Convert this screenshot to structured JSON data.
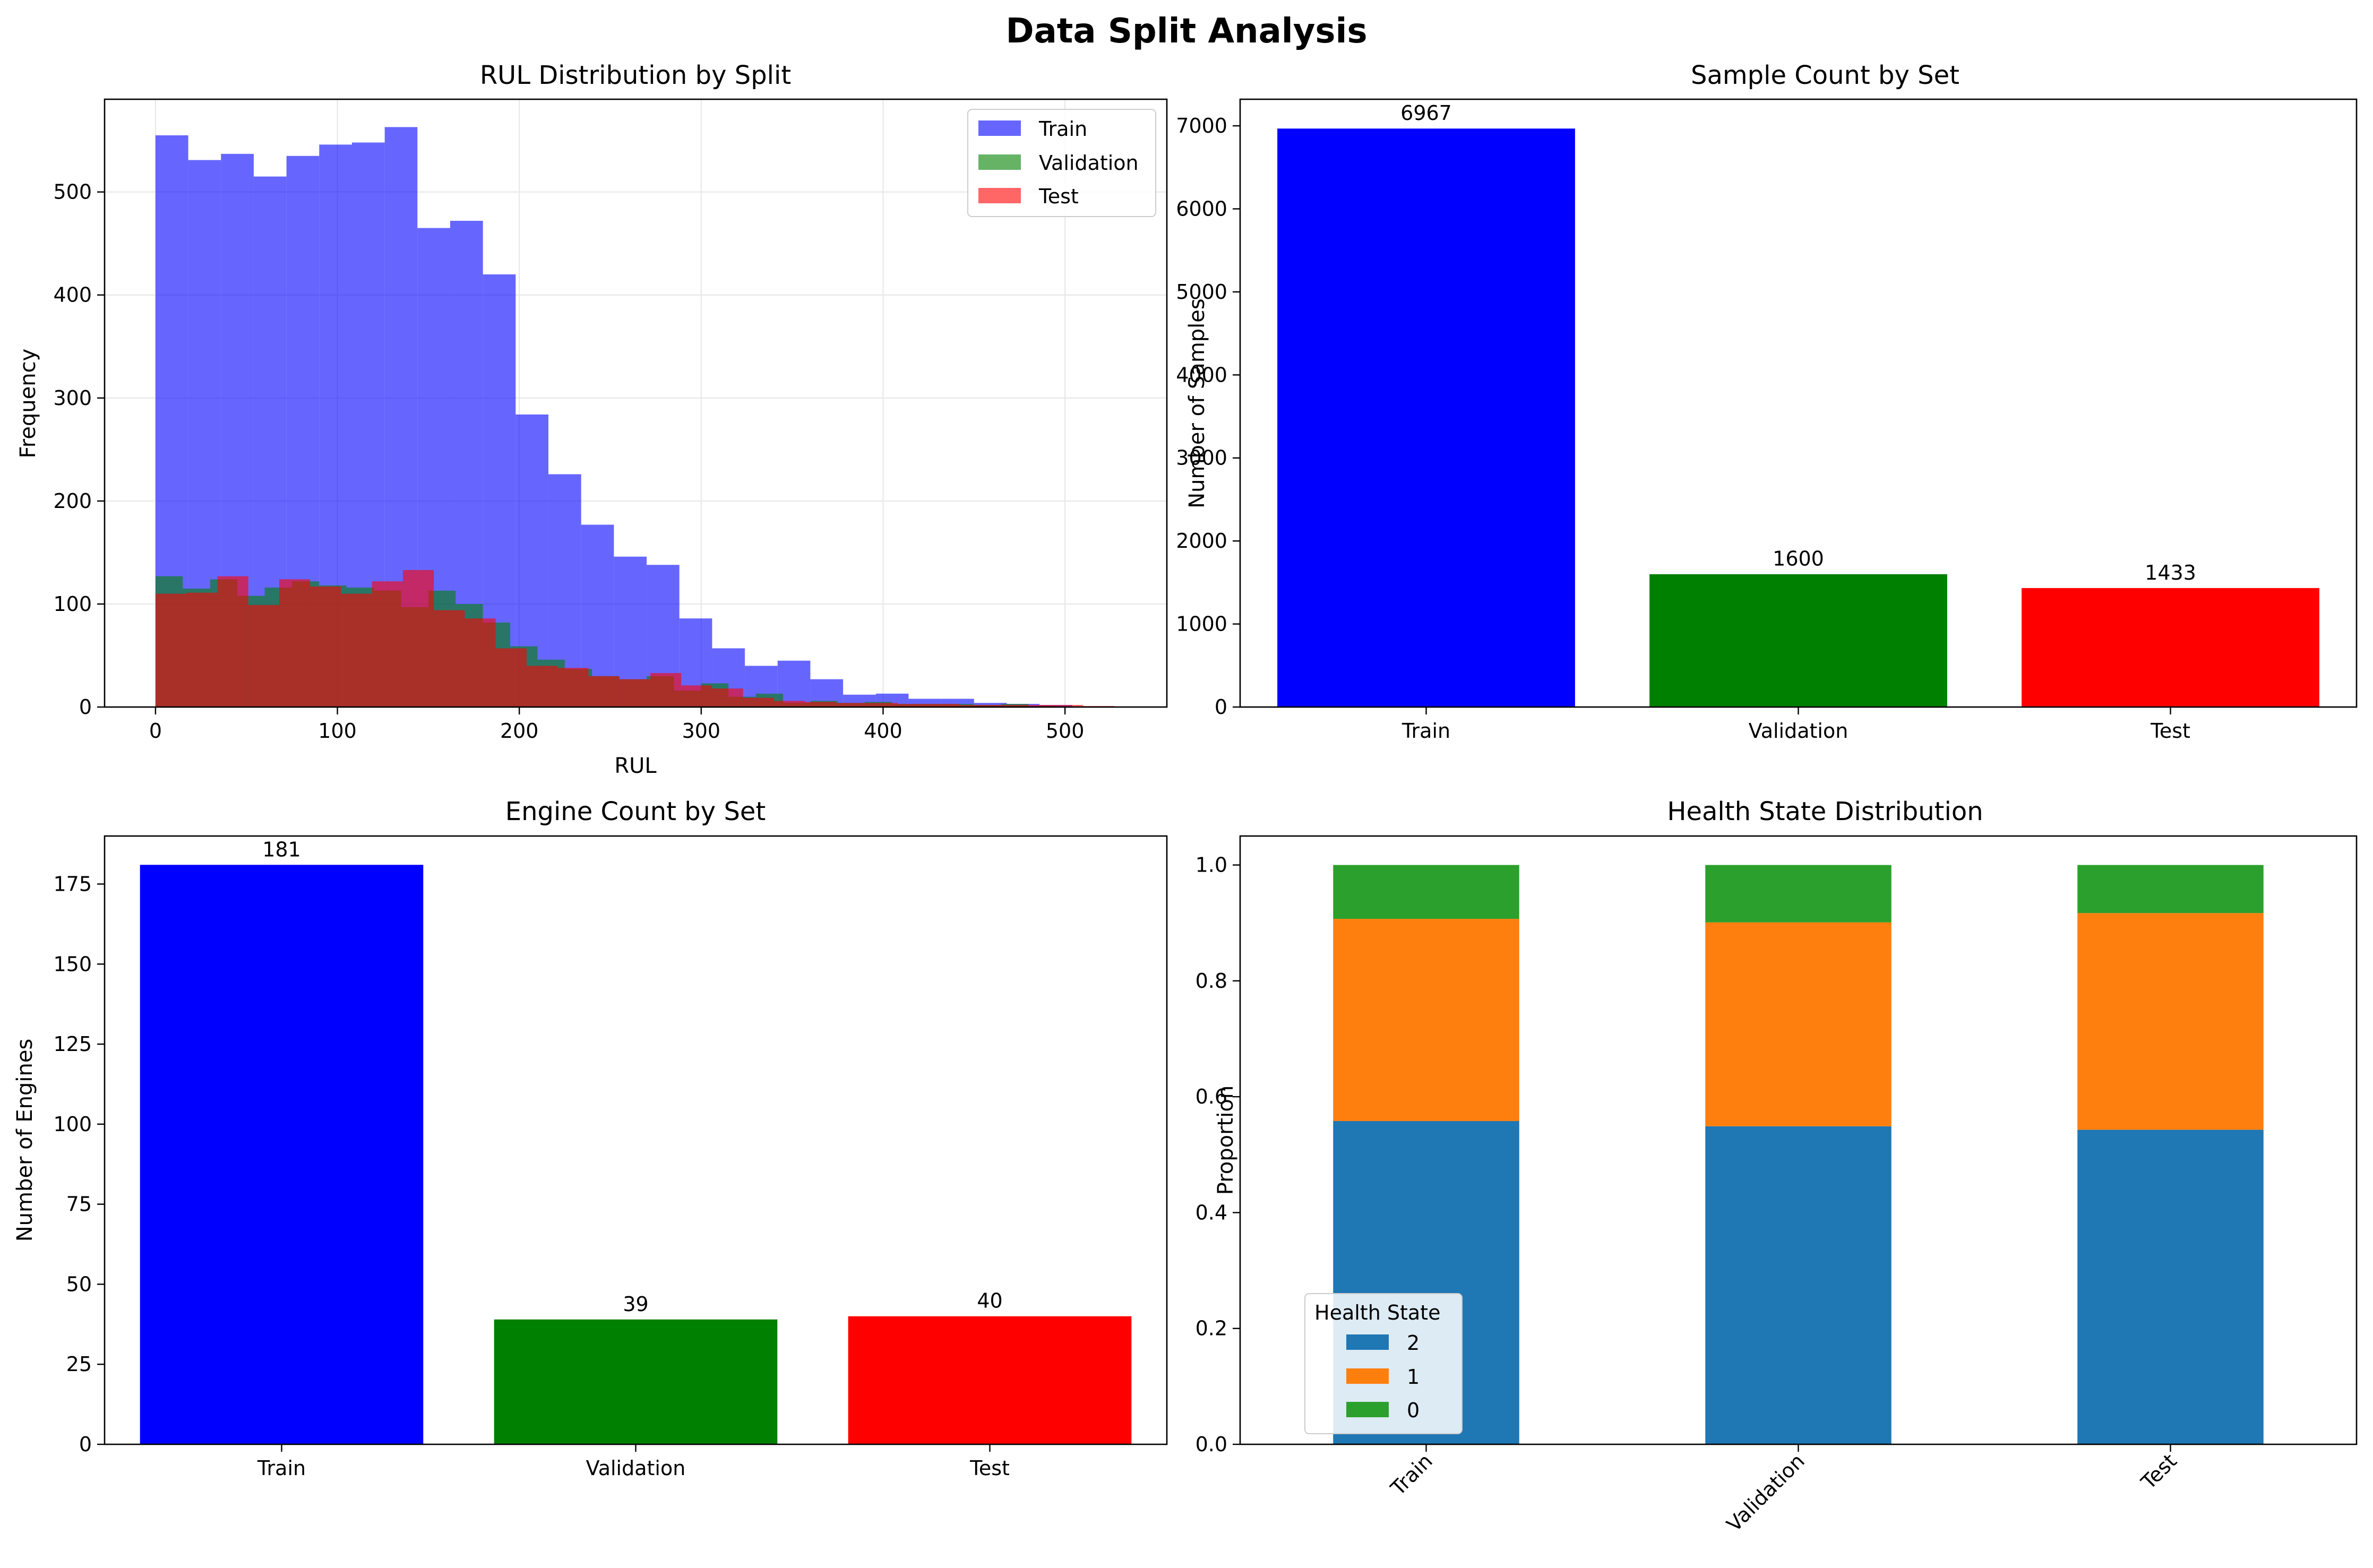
{
  "figure": {
    "title": "Data Split Analysis"
  },
  "chart_data": [
    {
      "type": "bar",
      "subtype": "histogram",
      "title": "RUL Distribution by Split",
      "xlabel": "RUL",
      "ylabel": "Frequency",
      "xlim": [
        -28,
        556
      ],
      "ylim": [
        0,
        590
      ],
      "xticks": [
        0,
        100,
        200,
        300,
        400,
        500
      ],
      "yticks": [
        0,
        100,
        200,
        300,
        400,
        500
      ],
      "grid": true,
      "legend": "top-right",
      "series": [
        {
          "name": "Train",
          "color": "#0000ff",
          "alpha": 0.6,
          "bin_width": 18,
          "bins": [
            [
              0,
              555
            ],
            [
              18,
              531
            ],
            [
              36,
              537
            ],
            [
              54,
              515
            ],
            [
              72,
              535
            ],
            [
              90,
              546
            ],
            [
              108,
              548
            ],
            [
              126,
              563
            ],
            [
              144,
              465
            ],
            [
              162,
              472
            ],
            [
              180,
              420
            ],
            [
              198,
              284
            ],
            [
              216,
              226
            ],
            [
              234,
              177
            ],
            [
              252,
              146
            ],
            [
              270,
              138
            ],
            [
              288,
              86
            ],
            [
              306,
              57
            ],
            [
              324,
              40
            ],
            [
              342,
              45
            ],
            [
              360,
              27
            ],
            [
              378,
              12
            ],
            [
              396,
              13
            ],
            [
              414,
              8
            ],
            [
              432,
              8
            ],
            [
              450,
              4
            ],
            [
              468,
              3
            ],
            [
              486,
              2
            ]
          ]
        },
        {
          "name": "Validation",
          "color": "#008000",
          "alpha": 0.6,
          "bin_width": 15,
          "bins": [
            [
              0,
              127
            ],
            [
              15,
              115
            ],
            [
              30,
              124
            ],
            [
              45,
              108
            ],
            [
              60,
              116
            ],
            [
              75,
              122
            ],
            [
              90,
              118
            ],
            [
              105,
              116
            ],
            [
              120,
              113
            ],
            [
              135,
              97
            ],
            [
              150,
              113
            ],
            [
              165,
              100
            ],
            [
              180,
              82
            ],
            [
              195,
              59
            ],
            [
              210,
              46
            ],
            [
              225,
              37
            ],
            [
              240,
              30
            ],
            [
              255,
              27
            ],
            [
              270,
              30
            ],
            [
              285,
              16
            ],
            [
              300,
              23
            ],
            [
              315,
              10
            ],
            [
              330,
              13
            ],
            [
              345,
              4
            ],
            [
              360,
              6
            ],
            [
              375,
              4
            ],
            [
              390,
              5
            ],
            [
              405,
              3
            ],
            [
              420,
              3
            ],
            [
              435,
              3
            ],
            [
              450,
              2
            ],
            [
              465,
              3
            ],
            [
              480,
              1
            ]
          ]
        },
        {
          "name": "Test",
          "color": "#ff0000",
          "alpha": 0.6,
          "bin_width": 17,
          "bins": [
            [
              0,
              110
            ],
            [
              17,
              111
            ],
            [
              34,
              127
            ],
            [
              51,
              99
            ],
            [
              68,
              124
            ],
            [
              85,
              117
            ],
            [
              102,
              110
            ],
            [
              119,
              122
            ],
            [
              136,
              133
            ],
            [
              153,
              94
            ],
            [
              170,
              86
            ],
            [
              187,
              57
            ],
            [
              204,
              40
            ],
            [
              221,
              38
            ],
            [
              238,
              30
            ],
            [
              255,
              27
            ],
            [
              272,
              33
            ],
            [
              289,
              21
            ],
            [
              306,
              18
            ],
            [
              323,
              9
            ],
            [
              340,
              6
            ],
            [
              357,
              5
            ],
            [
              374,
              4
            ],
            [
              391,
              4
            ],
            [
              408,
              3
            ],
            [
              425,
              3
            ],
            [
              442,
              2
            ],
            [
              459,
              2
            ],
            [
              476,
              2
            ],
            [
              493,
              2
            ],
            [
              510,
              1
            ]
          ]
        }
      ]
    },
    {
      "type": "bar",
      "title": "Sample Count by Set",
      "xlabel": "",
      "ylabel": "Number of Samples",
      "categories": [
        "Train",
        "Validation",
        "Test"
      ],
      "values": [
        6967,
        1600,
        1433
      ],
      "colors": [
        "#0000ff",
        "#008000",
        "#ff0000"
      ],
      "ylim": [
        0,
        7320
      ],
      "yticks": [
        0,
        1000,
        2000,
        3000,
        4000,
        5000,
        6000,
        7000
      ],
      "grid": false
    },
    {
      "type": "bar",
      "title": "Engine Count by Set",
      "xlabel": "",
      "ylabel": "Number of Engines",
      "categories": [
        "Train",
        "Validation",
        "Test"
      ],
      "values": [
        181,
        39,
        40
      ],
      "colors": [
        "#0000ff",
        "#008000",
        "#ff0000"
      ],
      "ylim": [
        0,
        190
      ],
      "yticks": [
        0,
        25,
        50,
        75,
        100,
        125,
        150,
        175
      ],
      "grid": false
    },
    {
      "type": "bar",
      "subtype": "stacked",
      "title": "Health State Distribution",
      "xlabel": "",
      "ylabel": "Proportion",
      "categories": [
        "Train",
        "Validation",
        "Test"
      ],
      "ylim": [
        0,
        1.05
      ],
      "yticks": [
        0.0,
        0.2,
        0.4,
        0.6,
        0.8,
        1.0
      ],
      "legend": "bottom-left",
      "legend_title": "Health State",
      "series": [
        {
          "name": "2",
          "color": "#1f77b4",
          "values": [
            0.558,
            0.549,
            0.543
          ]
        },
        {
          "name": "1",
          "color": "#ff7f0e",
          "values": [
            0.349,
            0.352,
            0.374
          ]
        },
        {
          "name": "0",
          "color": "#2ca02c",
          "values": [
            0.093,
            0.099,
            0.083
          ]
        }
      ]
    }
  ]
}
